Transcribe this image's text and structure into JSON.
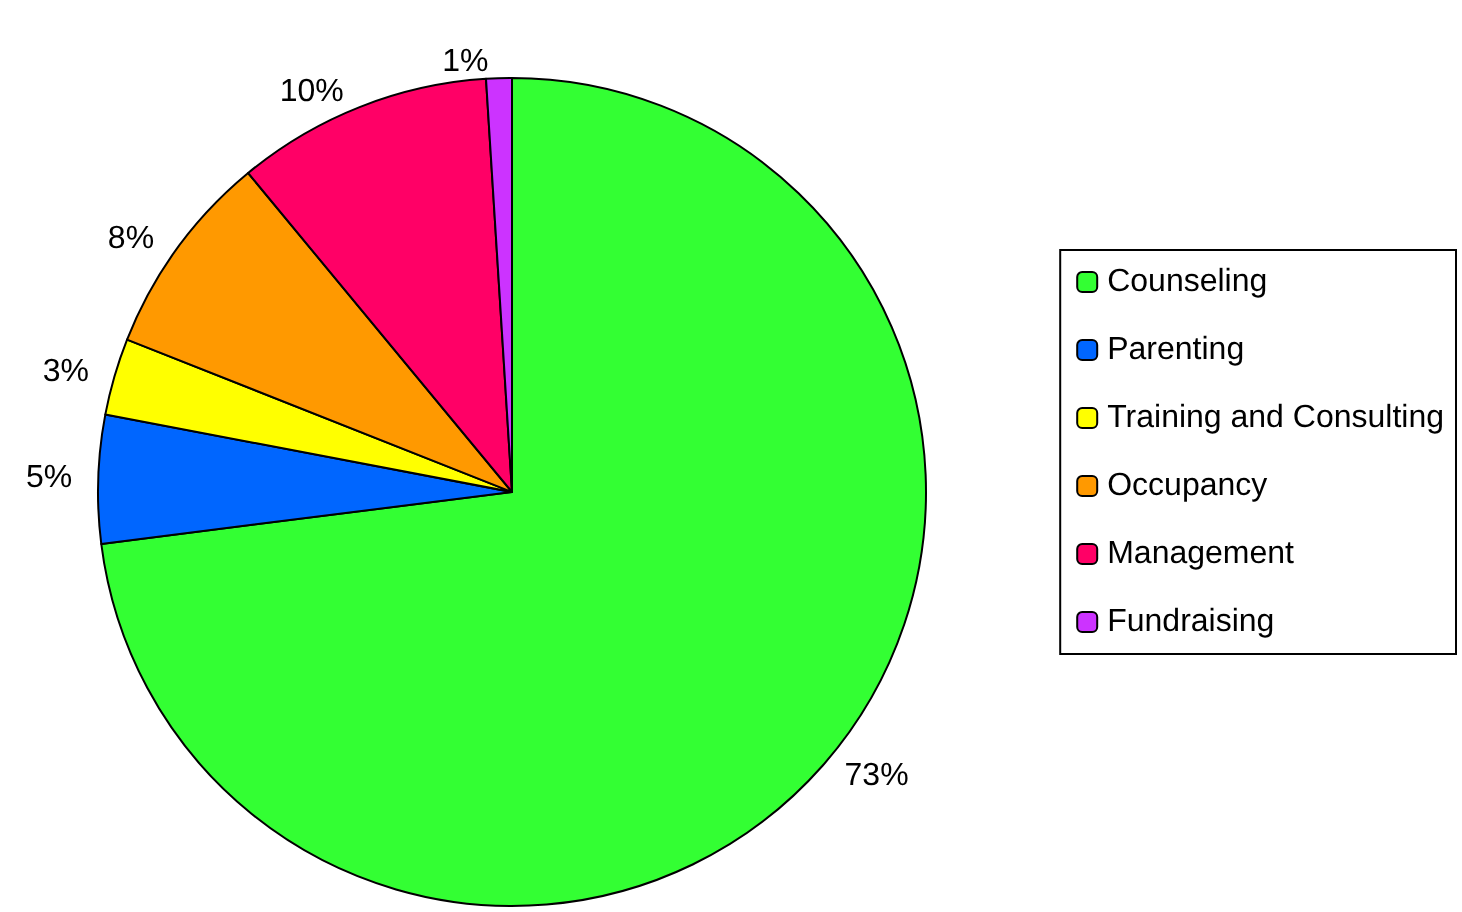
{
  "chart_data": {
    "type": "pie",
    "categories": [
      "Counseling",
      "Parenting",
      "Training and Consulting",
      "Occupancy",
      "Management",
      "Fundraising"
    ],
    "values": [
      73,
      5,
      3,
      8,
      10,
      1
    ],
    "colors": [
      "#33ff33",
      "#0066ff",
      "#ffff00",
      "#ff9900",
      "#ff0066",
      "#cc33ff"
    ],
    "value_labels": [
      "73%",
      "5%",
      "3%",
      "8%",
      "10%",
      "1%"
    ],
    "legend": "right"
  }
}
